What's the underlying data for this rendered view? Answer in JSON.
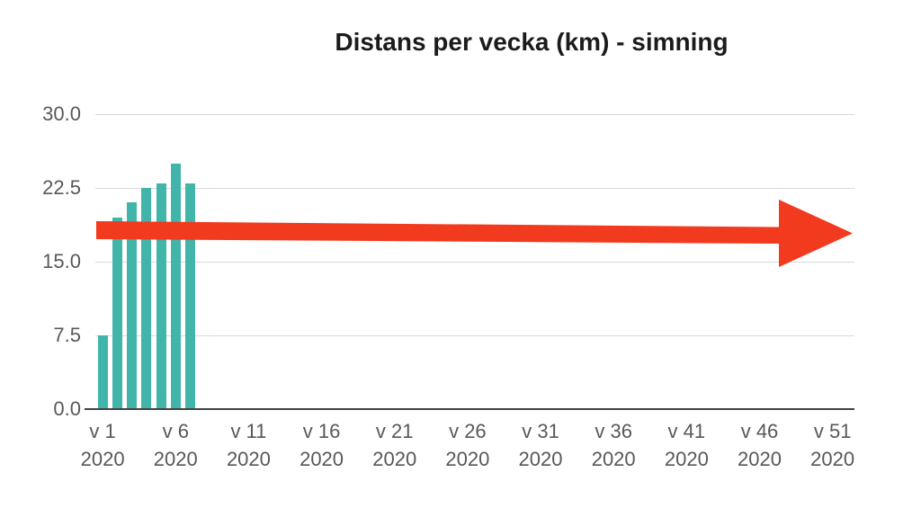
{
  "chart_data": {
    "type": "bar",
    "title": "Distans per vecka (km) - simning",
    "xlabel": "",
    "ylabel": "",
    "weeks_total": 52,
    "x": [
      1,
      2,
      3,
      4,
      5,
      6,
      7
    ],
    "values": [
      7.5,
      19.5,
      21,
      22.5,
      23,
      25,
      23
    ],
    "series": [
      {
        "name": "Distans per vecka (km)",
        "color": "#42b5aa",
        "weeks": [
          1,
          2,
          3,
          4,
          5,
          6,
          7
        ],
        "values": [
          7.5,
          19.5,
          21,
          22.5,
          23,
          25,
          23
        ]
      }
    ],
    "ylim": [
      0,
      30
    ],
    "grid": "horizontal",
    "legend": "none",
    "y_ticks": [
      {
        "value": 30,
        "label": "30.0"
      },
      {
        "value": 22.5,
        "label": "22.5"
      },
      {
        "value": 15,
        "label": "15.0"
      },
      {
        "value": 7.5,
        "label": "7.5"
      },
      {
        "value": 0,
        "label": "0.0"
      }
    ],
    "x_ticks": [
      {
        "week": 1,
        "line1": "v 1",
        "line2": "2020"
      },
      {
        "week": 6,
        "line1": "v 6",
        "line2": "2020"
      },
      {
        "week": 11,
        "line1": "v 11",
        "line2": "2020"
      },
      {
        "week": 16,
        "line1": "v 16",
        "line2": "2020"
      },
      {
        "week": 21,
        "line1": "v 21",
        "line2": "2020"
      },
      {
        "week": 26,
        "line1": "v 26",
        "line2": "2020"
      },
      {
        "week": 31,
        "line1": "v 31",
        "line2": "2020"
      },
      {
        "week": 36,
        "line1": "v 36",
        "line2": "2020"
      },
      {
        "week": 41,
        "line1": "v 41",
        "line2": "2020"
      },
      {
        "week": 46,
        "line1": "v 46",
        "line2": "2020"
      },
      {
        "week": 51,
        "line1": "v 51",
        "line2": "2020"
      }
    ],
    "annotation_arrow": {
      "icon": "right-arrow-icon",
      "direction": "right",
      "color": "#f23a1e"
    }
  },
  "colors": {
    "background": "#ffffff",
    "bar": "#42b5aa",
    "arrow": "#f23a1e",
    "gridline": "#d9d9d9",
    "axis_line": "#424242",
    "tick_label": "#58585a",
    "title": "#1b1b1b"
  }
}
